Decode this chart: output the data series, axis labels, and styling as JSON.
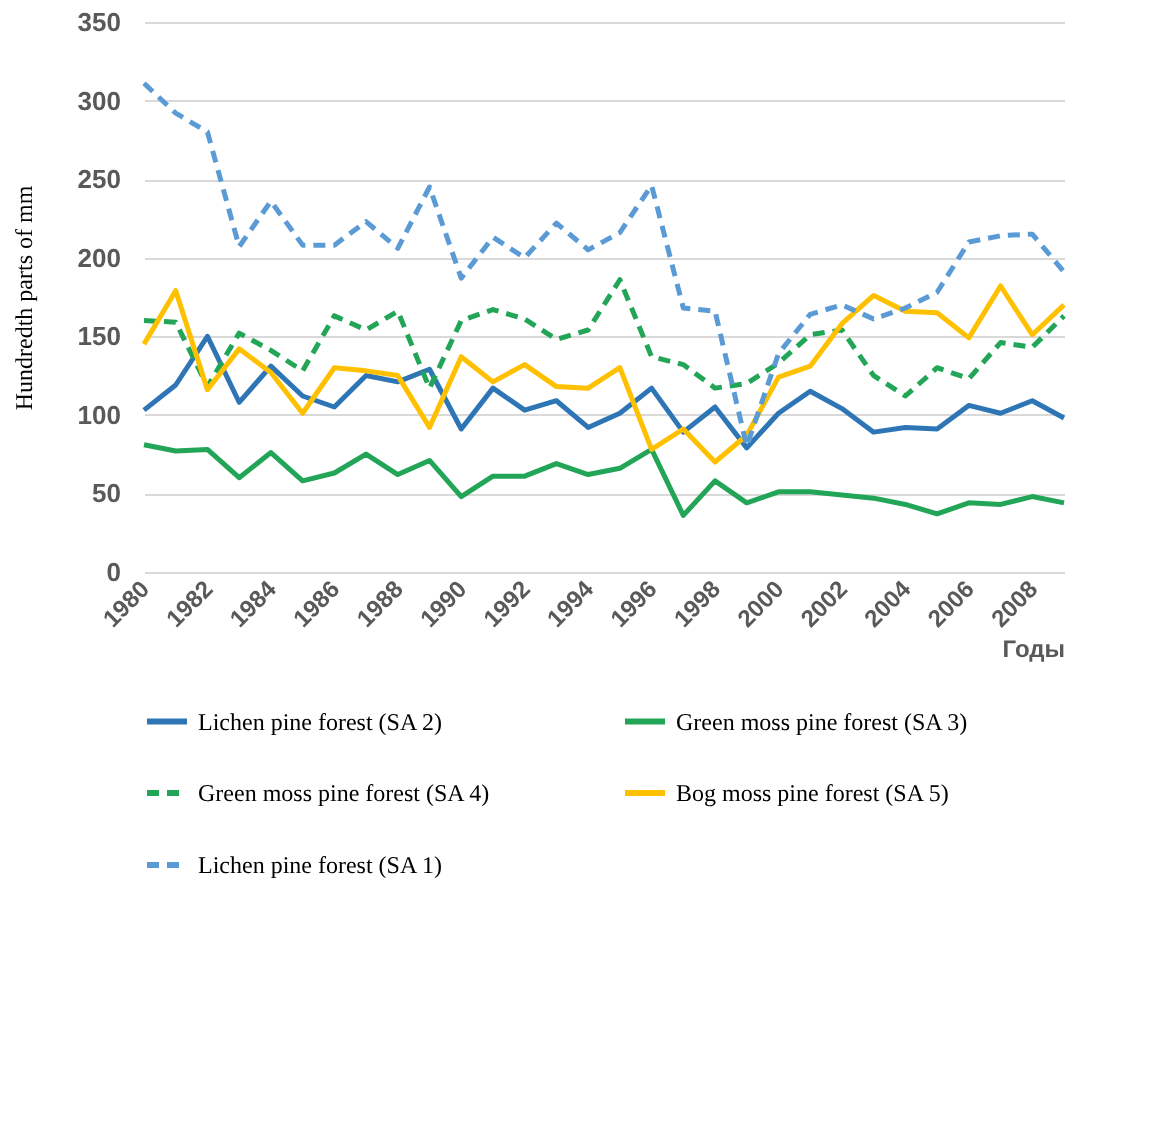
{
  "chart_data": {
    "type": "line",
    "ylabel": "Hundredth parts of mm",
    "xlabel": "Годы",
    "x": [
      1980,
      1981,
      1982,
      1983,
      1984,
      1985,
      1986,
      1987,
      1988,
      1989,
      1990,
      1991,
      1992,
      1993,
      1994,
      1995,
      1996,
      1997,
      1998,
      1999,
      2000,
      2001,
      2002,
      2003,
      2004,
      2005,
      2006,
      2007,
      2008,
      2009
    ],
    "xlim": [
      1980,
      2009
    ],
    "xticks": [
      1980,
      1982,
      1984,
      1986,
      1988,
      1990,
      1992,
      1994,
      1996,
      1998,
      2000,
      2002,
      2004,
      2006,
      2008
    ],
    "ylim": [
      0,
      350
    ],
    "yticks": [
      0,
      50,
      100,
      150,
      200,
      250,
      300,
      350
    ],
    "grid": "y",
    "legend": "bottom",
    "marker": "none",
    "series": [
      {
        "name": "Lichen pine forest (SA 2)",
        "color": "#2e75b6",
        "line_style": "solid",
        "values": [
          103,
          119,
          150,
          108,
          131,
          112,
          105,
          125,
          121,
          129,
          91,
          117,
          103,
          109,
          92,
          101,
          117,
          89,
          105,
          79,
          101,
          115,
          104,
          89,
          92,
          91,
          106,
          101,
          109,
          98
        ]
      },
      {
        "name": "Green moss pine forest (SA 3)",
        "color": "#22a557",
        "line_style": "solid",
        "values": [
          81,
          77,
          78,
          60,
          76,
          58,
          63,
          75,
          62,
          71,
          48,
          61,
          61,
          69,
          62,
          66,
          78,
          36,
          58,
          44,
          51,
          51,
          49,
          47,
          43,
          37,
          44,
          43,
          48,
          44
        ]
      },
      {
        "name": "Green moss pine forest (SA 4)",
        "color": "#22a557",
        "line_style": "dashed",
        "values": [
          160,
          159,
          118,
          152,
          141,
          128,
          163,
          154,
          166,
          117,
          160,
          167,
          161,
          148,
          154,
          186,
          137,
          132,
          117,
          120,
          133,
          151,
          154,
          125,
          112,
          130,
          123,
          146,
          143,
          163
        ]
      },
      {
        "name": "Bog moss pine forest (SA 5)",
        "color": "#ffc000",
        "line_style": "solid",
        "values": [
          145,
          179,
          116,
          142,
          127,
          101,
          130,
          128,
          125,
          92,
          137,
          121,
          132,
          118,
          117,
          130,
          78,
          91,
          70,
          87,
          124,
          131,
          158,
          176,
          166,
          165,
          149,
          182,
          151,
          170
        ]
      },
      {
        "name": "Lichen pine forest (SA 1)",
        "color": "#5b9bd5",
        "line_style": "dashed",
        "values": [
          311,
          292,
          280,
          207,
          236,
          208,
          208,
          223,
          206,
          245,
          187,
          213,
          200,
          222,
          205,
          216,
          246,
          168,
          166,
          80,
          139,
          164,
          170,
          161,
          168,
          178,
          210,
          214,
          215,
          191
        ]
      }
    ]
  }
}
